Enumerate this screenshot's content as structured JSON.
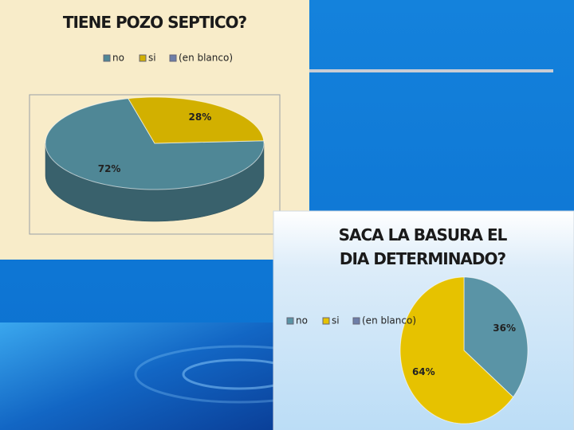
{
  "chart_data": [
    {
      "type": "pie",
      "title": "TIENE POZO SEPTICO?",
      "categories": [
        "no",
        "si",
        "(en blanco)"
      ],
      "values": [
        72,
        28,
        0
      ],
      "value_labels": [
        "72%",
        "28%",
        null
      ],
      "colors": [
        "#4f8796",
        "#d2b000",
        "#6e7ea8"
      ]
    },
    {
      "type": "pie",
      "title": "SACA LA BASURA EL DIA DETERMINADO?",
      "categories": [
        "no",
        "si",
        "(en blanco)"
      ],
      "values": [
        36,
        64,
        0
      ],
      "value_labels": [
        "36%",
        "64%",
        null
      ],
      "colors": [
        "#5a94a6",
        "#e6c200",
        "#6e7ea8"
      ]
    }
  ]
}
